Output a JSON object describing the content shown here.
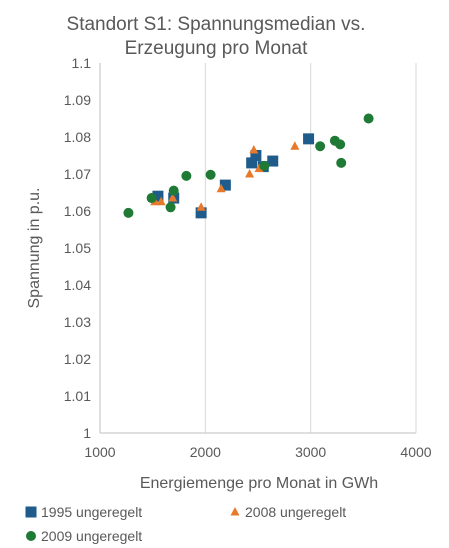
{
  "chart_data": {
    "type": "scatter",
    "title_lines": [
      "Standort S1: Spannungsmedian vs.",
      "Erzeugung pro Monat"
    ],
    "xlabel": "Energiemenge pro Monat in GWh",
    "ylabel": "Spannung in p.u.",
    "xlim": [
      1000,
      4000
    ],
    "ylim": [
      1.0,
      1.1
    ],
    "xticks": [
      "1000",
      "2000",
      "3000",
      "4000"
    ],
    "yticks": [
      "1",
      "1.01",
      "1.02",
      "1.03",
      "1.04",
      "1.05",
      "1.06",
      "1.07",
      "1.08",
      "1.09",
      "1.1"
    ],
    "grid": "vertical major",
    "legend_position": "bottom",
    "series": [
      {
        "name": "1995 ungeregelt",
        "marker": "square",
        "color": "#1f5c8b",
        "points": [
          [
            1550,
            1.064
          ],
          [
            1700,
            1.0635
          ],
          [
            1960,
            1.0595
          ],
          [
            2190,
            1.067
          ],
          [
            2440,
            1.073
          ],
          [
            2480,
            1.075
          ],
          [
            2550,
            1.072
          ],
          [
            2640,
            1.0735
          ],
          [
            2980,
            1.0795
          ]
        ]
      },
      {
        "name": "2008 ungeregelt",
        "marker": "triangle",
        "color": "#e8782a",
        "points": [
          [
            1520,
            1.0625
          ],
          [
            1580,
            1.0625
          ],
          [
            1690,
            1.0635
          ],
          [
            1960,
            1.061
          ],
          [
            2150,
            1.066
          ],
          [
            2420,
            1.07
          ],
          [
            2460,
            1.0765
          ],
          [
            2510,
            1.0715
          ],
          [
            2850,
            1.0775
          ]
        ]
      },
      {
        "name": "2009 ungeregelt",
        "marker": "circle",
        "color": "#1e7a34",
        "points": [
          [
            1270,
            1.0595
          ],
          [
            1490,
            1.0635
          ],
          [
            1670,
            1.061
          ],
          [
            1700,
            1.0655
          ],
          [
            1820,
            1.0695
          ],
          [
            2050,
            1.0698
          ],
          [
            2560,
            1.0722
          ],
          [
            3090,
            1.0775
          ],
          [
            3230,
            1.079
          ],
          [
            3280,
            1.078
          ],
          [
            3290,
            1.073
          ],
          [
            3550,
            1.085
          ]
        ]
      }
    ]
  }
}
